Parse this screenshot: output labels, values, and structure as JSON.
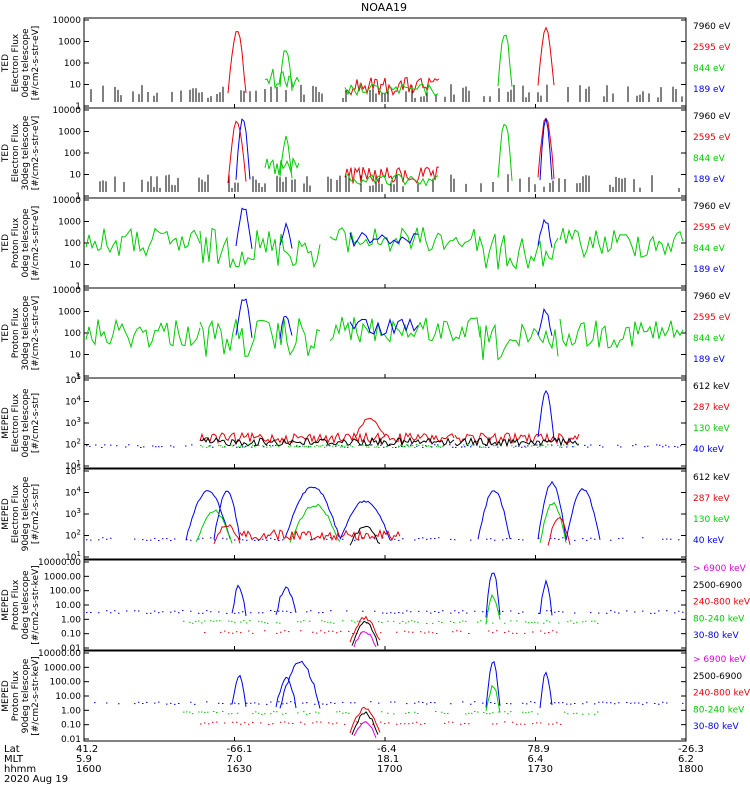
{
  "title": "NOAA19",
  "date_label": "2020 Aug 19",
  "colors": {
    "black": "#000000",
    "red": "#e8000b",
    "green": "#00cc00",
    "blue": "#0000ee",
    "magenta": "#dd00dd"
  },
  "footer": {
    "row_labels": [
      "Lat",
      "MLT",
      "hhmm"
    ],
    "columns": [
      {
        "lat": "41.2",
        "mlt": "5.9",
        "hhmm": "1600"
      },
      {
        "lat": "-66.1",
        "mlt": "7.0",
        "hhmm": "1630"
      },
      {
        "lat": "-6.4",
        "mlt": "18.1",
        "hhmm": "1700"
      },
      {
        "lat": "78.9",
        "mlt": "6.4",
        "hhmm": "1730"
      },
      {
        "lat": "-26.3",
        "mlt": "6.2",
        "hhmm": "1800"
      }
    ]
  },
  "chart_data": [
    {
      "type": "line",
      "ylabel": [
        "TED",
        "Electron Flux",
        "0deg telescope",
        "[#/cm2-s-str-eV]"
      ],
      "yscale": "log",
      "ylim": [
        1,
        10000
      ],
      "tick_labels": [
        "1",
        "10",
        "100",
        "1000",
        "10000"
      ],
      "series": [
        {
          "name": "7960 eV",
          "color": "black"
        },
        {
          "name": "2595 eV",
          "color": "red"
        },
        {
          "name": "844 eV",
          "color": "green"
        },
        {
          "name": "189 eV",
          "color": "blue"
        }
      ]
    },
    {
      "type": "line",
      "ylabel": [
        "TED",
        "Electron Flux",
        "30deg telescope",
        "[#/cm2-s-str-eV]"
      ],
      "yscale": "log",
      "ylim": [
        1,
        10000
      ],
      "tick_labels": [
        "1",
        "10",
        "100",
        "1000",
        "10000"
      ],
      "series": [
        {
          "name": "7960 eV",
          "color": "black"
        },
        {
          "name": "2595 eV",
          "color": "red"
        },
        {
          "name": "844 eV",
          "color": "green"
        },
        {
          "name": "189 eV",
          "color": "blue"
        }
      ]
    },
    {
      "type": "line",
      "ylabel": [
        "TED",
        "Proton Flux",
        "0deg telescope",
        "[#/cm2-s-str-eV]"
      ],
      "yscale": "log",
      "ylim": [
        1,
        10000
      ],
      "tick_labels": [
        "1",
        "10",
        "100",
        "1000",
        "10000"
      ],
      "series": [
        {
          "name": "7960 eV",
          "color": "black"
        },
        {
          "name": "2595 eV",
          "color": "red"
        },
        {
          "name": "844 eV",
          "color": "green"
        },
        {
          "name": "189 eV",
          "color": "blue"
        }
      ]
    },
    {
      "type": "line",
      "ylabel": [
        "TED",
        "Proton Flux",
        "30deg telescope",
        "[#/cm2-s-str-eV]"
      ],
      "yscale": "log",
      "ylim": [
        1,
        10000
      ],
      "tick_labels": [
        "1",
        "10",
        "100",
        "1000",
        "10000"
      ],
      "series": [
        {
          "name": "7960 eV",
          "color": "black"
        },
        {
          "name": "2595 eV",
          "color": "red"
        },
        {
          "name": "844 eV",
          "color": "green"
        },
        {
          "name": "189 eV",
          "color": "blue"
        }
      ]
    },
    {
      "type": "line",
      "ylabel": [
        "MEPED",
        "Electron Flux",
        "0deg telescope",
        "[#/cm2-s-str]"
      ],
      "yscale": "log",
      "ylim": [
        10,
        100000
      ],
      "tick_labels": [
        "10^1",
        "10^2",
        "10^3",
        "10^4",
        "10^5"
      ],
      "series": [
        {
          "name": "612 keV",
          "color": "black"
        },
        {
          "name": "287 keV",
          "color": "red"
        },
        {
          "name": "130 keV",
          "color": "green"
        },
        {
          "name": "40 keV",
          "color": "blue"
        }
      ]
    },
    {
      "type": "line",
      "ylabel": [
        "MEPED",
        "Electron Flux",
        "90deg telescope",
        "[#/cm2-s-str]"
      ],
      "yscale": "log",
      "ylim": [
        10,
        100000
      ],
      "tick_labels": [
        "10^1",
        "10^2",
        "10^3",
        "10^4",
        "10^5"
      ],
      "series": [
        {
          "name": "612 keV",
          "color": "black"
        },
        {
          "name": "287 keV",
          "color": "red"
        },
        {
          "name": "130 keV",
          "color": "green"
        },
        {
          "name": "40 keV",
          "color": "blue"
        }
      ]
    },
    {
      "type": "line",
      "ylabel": [
        "MEPED",
        "Proton Flux",
        "0deg telescope",
        "[#/cm2-s-str-keV]"
      ],
      "yscale": "log",
      "ylim": [
        0.01,
        10000
      ],
      "tick_labels": [
        "0.01",
        "0.10",
        "1.00",
        "10.00",
        "100.00",
        "1000.00",
        "10000.00"
      ],
      "series": [
        {
          "name": "> 6900 keV",
          "color": "magenta"
        },
        {
          "name": "2500-6900",
          "color": "black"
        },
        {
          "name": "240-800 keV",
          "color": "red"
        },
        {
          "name": "80-240 keV",
          "color": "green"
        },
        {
          "name": "30-80 keV",
          "color": "blue"
        }
      ]
    },
    {
      "type": "line",
      "ylabel": [
        "MEPED",
        "Proton Flux",
        "90deg telescope",
        "[#/cm2-s-str-keV]"
      ],
      "yscale": "log",
      "ylim": [
        0.01,
        10000
      ],
      "tick_labels": [
        "0.01",
        "0.10",
        "1.00",
        "10.00",
        "100.00",
        "1000.00",
        "10000.00"
      ],
      "series": [
        {
          "name": "> 6900 keV",
          "color": "magenta"
        },
        {
          "name": "2500-6900",
          "color": "black"
        },
        {
          "name": "240-800 keV",
          "color": "red"
        },
        {
          "name": "80-240 keV",
          "color": "green"
        },
        {
          "name": "30-80 keV",
          "color": "blue"
        }
      ]
    }
  ]
}
